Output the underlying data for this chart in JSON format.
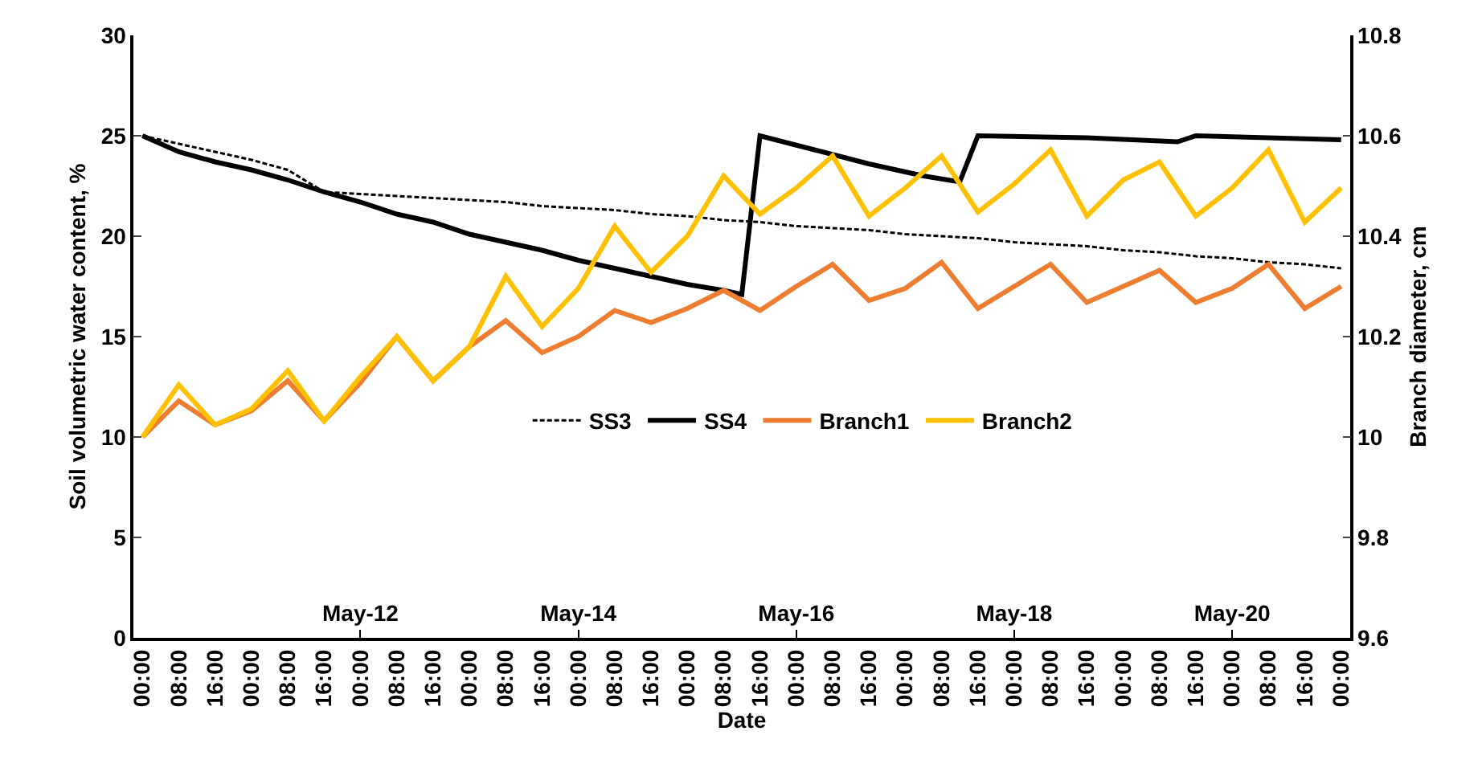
{
  "chart_data": {
    "type": "line",
    "xlabel": "Date",
    "ylabel": "Soil volumetric water content, %",
    "y2label": "Branch diameter, cm",
    "x": [
      "--05-10T00:00",
      "--05-10T08:00",
      "--05-10T16:00",
      "--05-11T00:00",
      "--05-11T08:00",
      "--05-11T16:00",
      "--05-12T00:00",
      "--05-12T08:00",
      "--05-12T16:00",
      "--05-13T00:00",
      "--05-13T08:00",
      "--05-13T16:00",
      "--05-14T00:00",
      "--05-14T08:00",
      "--05-14T16:00",
      "--05-15T00:00",
      "--05-15T08:00",
      "--05-15T16:00",
      "--05-16T00:00",
      "--05-16T08:00",
      "--05-16T16:00",
      "--05-17T00:00",
      "--05-17T08:00",
      "--05-17T16:00",
      "--05-18T00:00",
      "--05-18T08:00",
      "--05-18T16:00",
      "--05-19T00:00",
      "--05-19T08:00",
      "--05-19T16:00",
      "--05-20T00:00",
      "--05-20T08:00",
      "--05-20T16:00",
      "--05-21T00:00"
    ],
    "xlim": [
      "--05-09T22:00",
      "--05-21T02:00"
    ],
    "xticks": [
      {
        "value": "--05-10T00:00",
        "label": "00:00"
      },
      {
        "value": "--05-10T08:00",
        "label": "08:00"
      },
      {
        "value": "--05-10T16:00",
        "label": "16:00"
      },
      {
        "value": "--05-11T00:00",
        "label": "00:00"
      },
      {
        "value": "--05-11T08:00",
        "label": "08:00"
      },
      {
        "value": "--05-11T16:00",
        "label": "16:00"
      },
      {
        "value": "--05-12T00:00",
        "label": "00:00"
      },
      {
        "value": "--05-12T08:00",
        "label": "08:00"
      },
      {
        "value": "--05-12T16:00",
        "label": "16:00"
      },
      {
        "value": "--05-13T00:00",
        "label": "00:00"
      },
      {
        "value": "--05-13T08:00",
        "label": "08:00"
      },
      {
        "value": "--05-13T16:00",
        "label": "16:00"
      },
      {
        "value": "--05-14T00:00",
        "label": "00:00"
      },
      {
        "value": "--05-14T08:00",
        "label": "08:00"
      },
      {
        "value": "--05-14T16:00",
        "label": "16:00"
      },
      {
        "value": "--05-15T00:00",
        "label": "00:00"
      },
      {
        "value": "--05-15T08:00",
        "label": "08:00"
      },
      {
        "value": "--05-15T16:00",
        "label": "16:00"
      },
      {
        "value": "--05-16T00:00",
        "label": "00:00"
      },
      {
        "value": "--05-16T08:00",
        "label": "08:00"
      },
      {
        "value": "--05-16T16:00",
        "label": "16:00"
      },
      {
        "value": "--05-17T00:00",
        "label": "00:00"
      },
      {
        "value": "--05-17T08:00",
        "label": "08:00"
      },
      {
        "value": "--05-17T16:00",
        "label": "16:00"
      },
      {
        "value": "--05-18T00:00",
        "label": "00:00"
      },
      {
        "value": "--05-18T08:00",
        "label": "08:00"
      },
      {
        "value": "--05-18T16:00",
        "label": "16:00"
      },
      {
        "value": "--05-19T00:00",
        "label": "00:00"
      },
      {
        "value": "--05-19T08:00",
        "label": "08:00"
      },
      {
        "value": "--05-19T16:00",
        "label": "16:00"
      },
      {
        "value": "--05-20T00:00",
        "label": "00:00"
      },
      {
        "value": "--05-20T08:00",
        "label": "08:00"
      },
      {
        "value": "--05-20T16:00",
        "label": "16:00"
      },
      {
        "value": "--05-21T00:00",
        "label": "00:00"
      }
    ],
    "x2lim": [
      "--05-09T22:00",
      "--05-21T02:00"
    ],
    "x2ticks": [
      {
        "value": "--05-12T00:00",
        "label": "May-12"
      },
      {
        "value": "--05-14T00:00",
        "label": "May-14"
      },
      {
        "value": "--05-16T00:00",
        "label": "May-16"
      },
      {
        "value": "--05-18T00:00",
        "label": "May-18"
      },
      {
        "value": "--05-20T00:00",
        "label": "May-20"
      }
    ],
    "ylim": [
      0,
      30
    ],
    "yticks": [
      0,
      5,
      10,
      15,
      20,
      25,
      30
    ],
    "y2lim": [
      9.6,
      10.8
    ],
    "y2ticks": [
      9.6,
      9.8,
      10,
      10.2,
      10.4,
      10.6,
      10.8
    ],
    "legend": "bottom",
    "marker": "none",
    "series": [
      {
        "name": "SS3",
        "color": "#000000",
        "line_style": "dashed",
        "values": [
          25.0,
          24.6,
          24.2,
          23.8,
          23.3,
          22.2,
          22.1,
          22.0,
          21.9,
          21.8,
          21.7,
          21.5,
          21.4,
          21.3,
          21.1,
          21.0,
          20.8,
          20.7,
          20.5,
          20.4,
          20.3,
          20.1,
          20.0,
          19.9,
          19.7,
          19.6,
          19.5,
          19.3,
          19.2,
          19.0,
          18.9,
          18.7,
          18.6,
          18.4
        ]
      },
      {
        "name": "SS4",
        "color": "#000000",
        "line_style": "solid",
        "x": [
          "--05-10T00:00",
          "--05-10T08:00",
          "--05-10T16:00",
          "--05-11T00:00",
          "--05-11T08:00",
          "--05-11T16:00",
          "--05-12T00:00",
          "--05-12T08:00",
          "--05-12T16:00",
          "--05-13T00:00",
          "--05-13T08:00",
          "--05-13T16:00",
          "--05-14T00:00",
          "--05-14T08:00",
          "--05-14T16:00",
          "--05-15T00:00",
          "--05-15T08:00",
          "--05-15T12:00",
          "--05-15T16:00",
          "--05-16T04:00",
          "--05-16T16:00",
          "--05-17T04:00",
          "--05-17T12:00",
          "--05-17T16:00",
          "--05-18T16:00",
          "--05-19T12:00",
          "--05-19T16:00",
          "--05-21T00:00"
        ],
        "values": [
          25.0,
          24.2,
          23.7,
          23.3,
          22.8,
          22.2,
          21.7,
          21.1,
          20.7,
          20.1,
          19.7,
          19.3,
          18.8,
          18.4,
          18.0,
          17.6,
          17.3,
          17.1,
          25.0,
          24.3,
          23.6,
          23.0,
          22.7,
          25.0,
          24.9,
          24.7,
          25.0,
          24.8
        ]
      },
      {
        "name": "Branch1",
        "color": "#ed7d31",
        "line_style": "solid",
        "axis": "y2",
        "values": [
          10.0,
          10.072,
          10.024,
          10.052,
          10.112,
          10.032,
          10.108,
          10.2,
          10.112,
          10.18,
          10.232,
          10.168,
          10.2,
          10.252,
          10.228,
          10.256,
          10.292,
          10.252,
          10.3,
          10.344,
          10.272,
          10.296,
          10.348,
          10.256,
          10.3,
          10.344,
          10.268,
          10.3,
          10.332,
          10.268,
          10.296,
          10.344,
          10.256,
          10.3
        ]
      },
      {
        "name": "Branch2",
        "color": "#ffc000",
        "line_style": "solid",
        "axis": "y2",
        "values": [
          10.0,
          10.104,
          10.024,
          10.056,
          10.132,
          10.032,
          10.12,
          10.2,
          10.112,
          10.18,
          10.32,
          10.22,
          10.296,
          10.42,
          10.328,
          10.4,
          10.52,
          10.444,
          10.496,
          10.56,
          10.44,
          10.496,
          10.56,
          10.448,
          10.504,
          10.572,
          10.44,
          10.512,
          10.548,
          10.44,
          10.496,
          10.572,
          10.428,
          10.496
        ]
      }
    ]
  }
}
